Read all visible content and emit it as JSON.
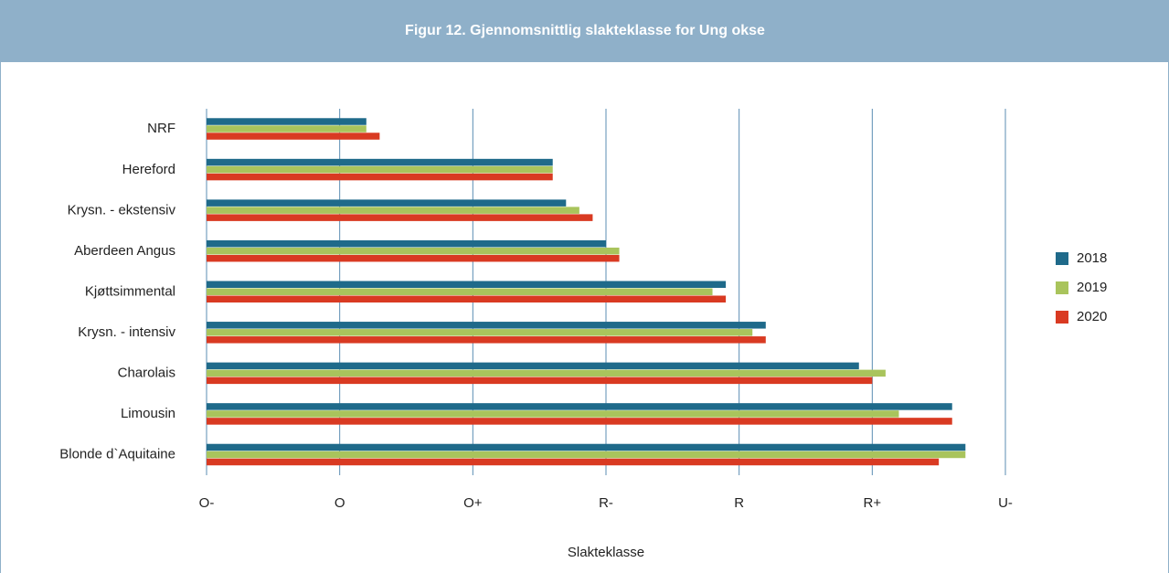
{
  "chart_data": {
    "type": "barh",
    "title": "Figur 12. Gjennomsnittlig slakteklasse for Ung okse",
    "categories": [
      "NRF",
      "Hereford",
      "Krysn. - ekstensiv",
      "Aberdeen Angus",
      "Kjøttsimmental",
      "Krysn. - intensiv",
      "Charolais",
      "Limousin",
      "Blonde d`Aquitaine"
    ],
    "series": [
      {
        "name": "2018",
        "color": "#1f6a8a",
        "values": [
          1.2,
          2.6,
          2.7,
          3.0,
          3.9,
          4.2,
          4.9,
          5.6,
          5.7
        ]
      },
      {
        "name": "2019",
        "color": "#a9c45c",
        "values": [
          1.2,
          2.6,
          2.8,
          3.1,
          3.8,
          4.1,
          5.1,
          5.2,
          5.7
        ]
      },
      {
        "name": "2020",
        "color": "#d93a22",
        "values": [
          1.3,
          2.6,
          2.9,
          3.1,
          3.9,
          4.2,
          5.0,
          5.6,
          5.5
        ]
      }
    ],
    "xlabel": "Slakteklasse",
    "xlim": [
      0,
      6
    ],
    "xticks": [
      {
        "value": 0,
        "label": "O-"
      },
      {
        "value": 1,
        "label": "O"
      },
      {
        "value": 2,
        "label": "O+"
      },
      {
        "value": 3,
        "label": "R-"
      },
      {
        "value": 4,
        "label": "R"
      },
      {
        "value": 5,
        "label": "R+"
      },
      {
        "value": 6,
        "label": "U-"
      }
    ],
    "grid": true,
    "legend": "right"
  }
}
